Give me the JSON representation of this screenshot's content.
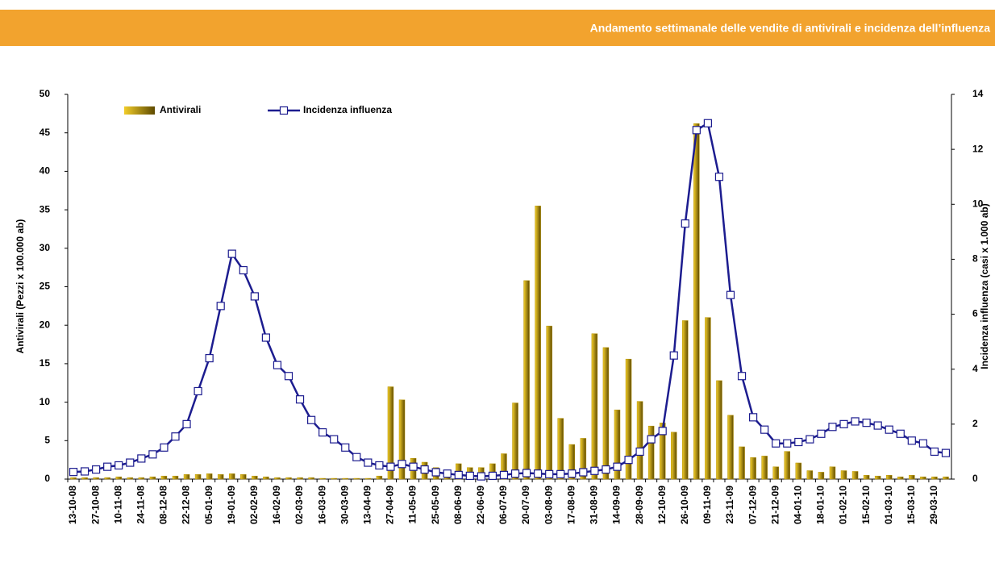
{
  "chart_data": {
    "type": "bar-line",
    "title": "Andamento settimanale delle vendite di antivirali e incidenza dell’influenza",
    "y_label": "Antivirali (Pezzi x 100.000 ab)",
    "y2_label": "Incidenza influenza (casi x 1.000 ab)",
    "categories": [
      "13-10-08",
      null,
      "27-10-08",
      null,
      "10-11-08",
      null,
      "24-11-08",
      null,
      "08-12-08",
      null,
      "22-12-08",
      null,
      "05-01-09",
      null,
      "19-01-09",
      null,
      "02-02-09",
      null,
      "16-02-09",
      null,
      "02-03-09",
      null,
      "16-03-09",
      null,
      "30-03-09",
      null,
      "13-04-09",
      null,
      "27-04-09",
      null,
      "11-05-09",
      null,
      "25-05-09",
      null,
      "08-06-09",
      null,
      "22-06-09",
      null,
      "06-07-09",
      null,
      "20-07-09",
      null,
      "03-08-09",
      null,
      "17-08-09",
      null,
      "31-08-09",
      null,
      "14-09-09",
      null,
      "28-09-09",
      null,
      "12-10-09",
      null,
      "26-10-09",
      null,
      "09-11-09",
      null,
      "23-11-09",
      null,
      "07-12-09",
      null,
      "21-12-09",
      null,
      "04-01-10",
      null,
      "18-01-10",
      null,
      "01-02-10",
      null,
      "15-02-10",
      null,
      "01-03-10",
      null,
      "15-03-10",
      null,
      "29-03-10",
      null
    ],
    "series": [
      {
        "name": "Antivirali",
        "type": "bar",
        "axis": "y",
        "color": "#b89400",
        "values": [
          0.2,
          0.2,
          0.2,
          0.2,
          0.3,
          0.2,
          0.2,
          0.3,
          0.4,
          0.4,
          0.6,
          0.6,
          0.7,
          0.6,
          0.7,
          0.6,
          0.4,
          0.3,
          0.2,
          0.2,
          0.2,
          0.2,
          0.1,
          0.1,
          0.1,
          0.1,
          0.1,
          0.4,
          12.0,
          10.3,
          2.7,
          2.2,
          1.5,
          0.8,
          2.0,
          1.5,
          1.5,
          2.0,
          3.3,
          9.9,
          25.8,
          35.5,
          19.9,
          7.9,
          4.5,
          5.3,
          18.9,
          17.1,
          9.0,
          15.6,
          10.1,
          6.9,
          7.3,
          6.1,
          20.6,
          46.2,
          21.0,
          12.8,
          8.3,
          4.2,
          2.8,
          3.0,
          1.6,
          3.6,
          2.1,
          1.1,
          0.9,
          1.6,
          1.1,
          1.0,
          0.5,
          0.4,
          0.5,
          0.3,
          0.5,
          0.3,
          0.3,
          0.3
        ]
      },
      {
        "name": "Incidenza influenza",
        "type": "line",
        "axis": "y2",
        "color": "#1c1c8f",
        "values": [
          0.26,
          0.28,
          0.35,
          0.45,
          0.5,
          0.6,
          0.75,
          0.9,
          1.15,
          1.55,
          2.0,
          3.2,
          4.4,
          6.3,
          8.2,
          7.6,
          6.65,
          5.15,
          4.15,
          3.75,
          2.9,
          2.15,
          1.7,
          1.45,
          1.15,
          0.8,
          0.6,
          0.5,
          0.45,
          0.55,
          0.45,
          0.35,
          0.25,
          0.2,
          0.15,
          0.12,
          0.1,
          0.12,
          0.15,
          0.2,
          0.22,
          0.2,
          0.18,
          0.18,
          0.2,
          0.25,
          0.3,
          0.35,
          0.45,
          0.7,
          1.0,
          1.45,
          1.75,
          4.5,
          9.3,
          12.7,
          12.95,
          11.0,
          6.7,
          3.75,
          2.25,
          1.8,
          1.3,
          1.3,
          1.35,
          1.45,
          1.65,
          1.9,
          2.0,
          2.1,
          2.05,
          1.95,
          1.8,
          1.65,
          1.4,
          1.3,
          1.0,
          0.95
        ]
      }
    ],
    "ylim": [
      0,
      50
    ],
    "yticks": [
      0,
      5,
      10,
      15,
      20,
      25,
      30,
      35,
      40,
      45,
      50
    ],
    "y2lim": [
      0,
      14
    ],
    "y2ticks": [
      0,
      2,
      4,
      6,
      8,
      10,
      12,
      14
    ],
    "legend": "top-left",
    "grid": false
  }
}
